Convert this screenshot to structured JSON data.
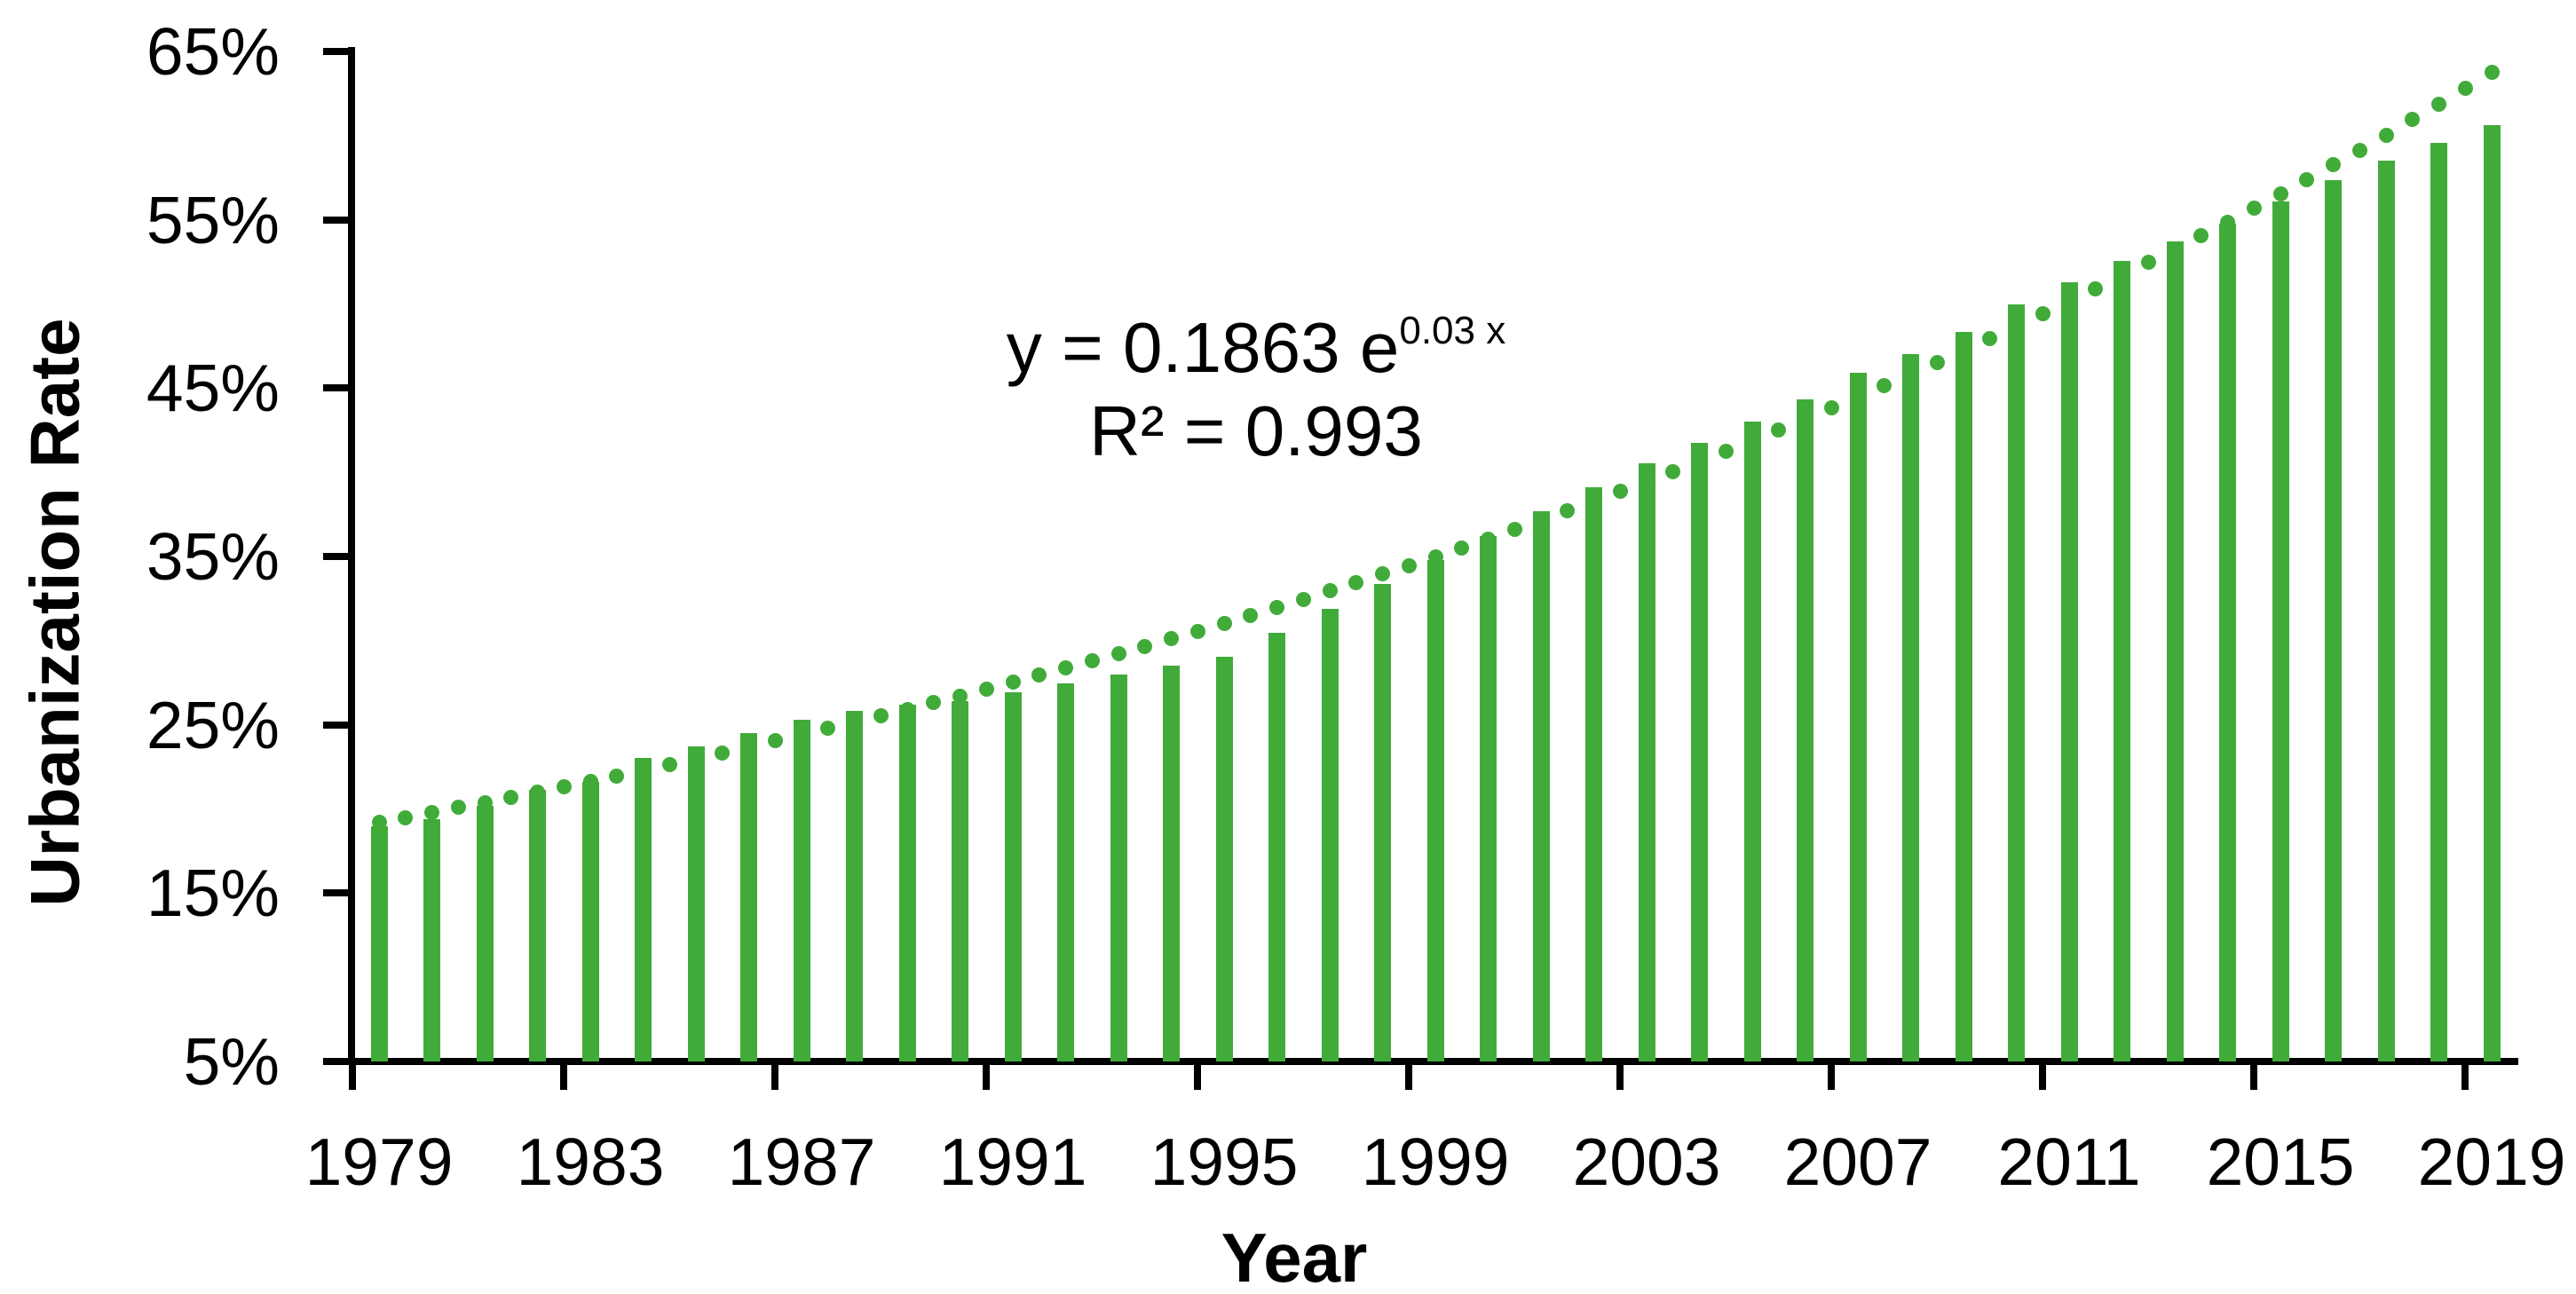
{
  "chart_data": {
    "type": "bar",
    "title": "",
    "xlabel": "Year",
    "ylabel": "Urbanization Rate",
    "categories": [
      1979,
      1980,
      1981,
      1982,
      1983,
      1984,
      1985,
      1986,
      1987,
      1988,
      1989,
      1990,
      1991,
      1992,
      1993,
      1994,
      1995,
      1996,
      1997,
      1998,
      1999,
      2000,
      2001,
      2002,
      2003,
      2004,
      2005,
      2006,
      2007,
      2008,
      2009,
      2010,
      2011,
      2012,
      2013,
      2014,
      2015,
      2016,
      2017,
      2018,
      2019
    ],
    "values": [
      18.96,
      19.39,
      20.16,
      21.13,
      21.62,
      23.01,
      23.71,
      24.52,
      25.32,
      25.81,
      26.21,
      26.41,
      26.94,
      27.46,
      27.99,
      28.51,
      29.04,
      30.48,
      31.91,
      33.35,
      34.78,
      36.22,
      37.66,
      39.09,
      40.53,
      41.76,
      42.99,
      44.34,
      45.89,
      46.99,
      48.34,
      49.95,
      51.27,
      52.57,
      53.73,
      54.77,
      56.1,
      57.35,
      58.52,
      59.58,
      60.6
    ],
    "ylim": [
      5,
      65
    ],
    "y_tick_step": 10,
    "y_tick_labels": [
      "5%",
      "15%",
      "25%",
      "35%",
      "45%",
      "55%",
      "65%"
    ],
    "x_tick_labels": [
      "1979",
      "1983",
      "1987",
      "1991",
      "1995",
      "1999",
      "2003",
      "2007",
      "2011",
      "2015",
      "2019"
    ],
    "x_label_interval": 4,
    "grid": false,
    "legend_position": "none",
    "bar_color": "#41ab3a",
    "axis_color": "#000000",
    "text_color": "#000000",
    "trendline": {
      "style": "dotted",
      "color": "#41ab3a",
      "a": 0.1863,
      "b": 0.03,
      "equation_prefix": "y = 0.1863 e",
      "equation_exponent": "0.03 x",
      "r_squared_label": "R² = 0.993"
    }
  }
}
